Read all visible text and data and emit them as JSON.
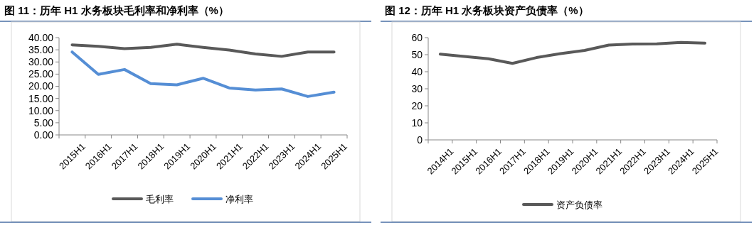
{
  "chart_data": [
    {
      "type": "line",
      "title": "图 11：历年 H1 水务板块毛利率和净利率（%）",
      "categories": [
        "2015H1",
        "2016H1",
        "2017H1",
        "2018H1",
        "2019H1",
        "2020H1",
        "2021H1",
        "2022H1",
        "2023H1",
        "2024H1",
        "2025H1"
      ],
      "series": [
        {
          "name": "毛利率",
          "color": "#595959",
          "values": [
            37.0,
            36.4,
            35.5,
            36.0,
            37.3,
            36.0,
            34.9,
            33.3,
            32.3,
            34.1,
            34.1
          ]
        },
        {
          "name": "净利率",
          "color": "#558ed5",
          "values": [
            34.1,
            24.9,
            26.9,
            21.1,
            20.6,
            23.3,
            19.3,
            18.5,
            18.9,
            15.8,
            17.6
          ]
        }
      ],
      "ylim": [
        0,
        40
      ],
      "yticks": [
        {
          "value": 0,
          "label": "0.00"
        },
        {
          "value": 5,
          "label": "5.00"
        },
        {
          "value": 10,
          "label": "10.00"
        },
        {
          "value": 15,
          "label": "15.00"
        },
        {
          "value": 20,
          "label": "20.00"
        },
        {
          "value": 25,
          "label": "25.00"
        },
        {
          "value": 30,
          "label": "30.00"
        },
        {
          "value": 35,
          "label": "35.00"
        },
        {
          "value": 40,
          "label": "40.00"
        }
      ],
      "grid": false,
      "legend": "bottom",
      "marker": "none",
      "line_style": "solid"
    },
    {
      "type": "line",
      "title": "图 12：历年 H1 水务板块资产负债率（%）",
      "categories": [
        "2014H1",
        "2015H1",
        "2016H1",
        "2017H1",
        "2018H1",
        "2019H1",
        "2020H1",
        "2021H1",
        "2022H1",
        "2023H1",
        "2024H1",
        "2025H1"
      ],
      "series": [
        {
          "name": "资产负债率",
          "color": "#595959",
          "values": [
            50.3,
            49.0,
            47.6,
            44.9,
            48.3,
            50.6,
            52.5,
            55.6,
            56.2,
            56.4,
            57.2,
            56.8
          ]
        }
      ],
      "ylim": [
        0,
        60
      ],
      "yticks": [
        0,
        10,
        20,
        30,
        40,
        50,
        60
      ],
      "grid": false,
      "legend": "bottom",
      "marker": "none",
      "line_style": "solid"
    }
  ]
}
